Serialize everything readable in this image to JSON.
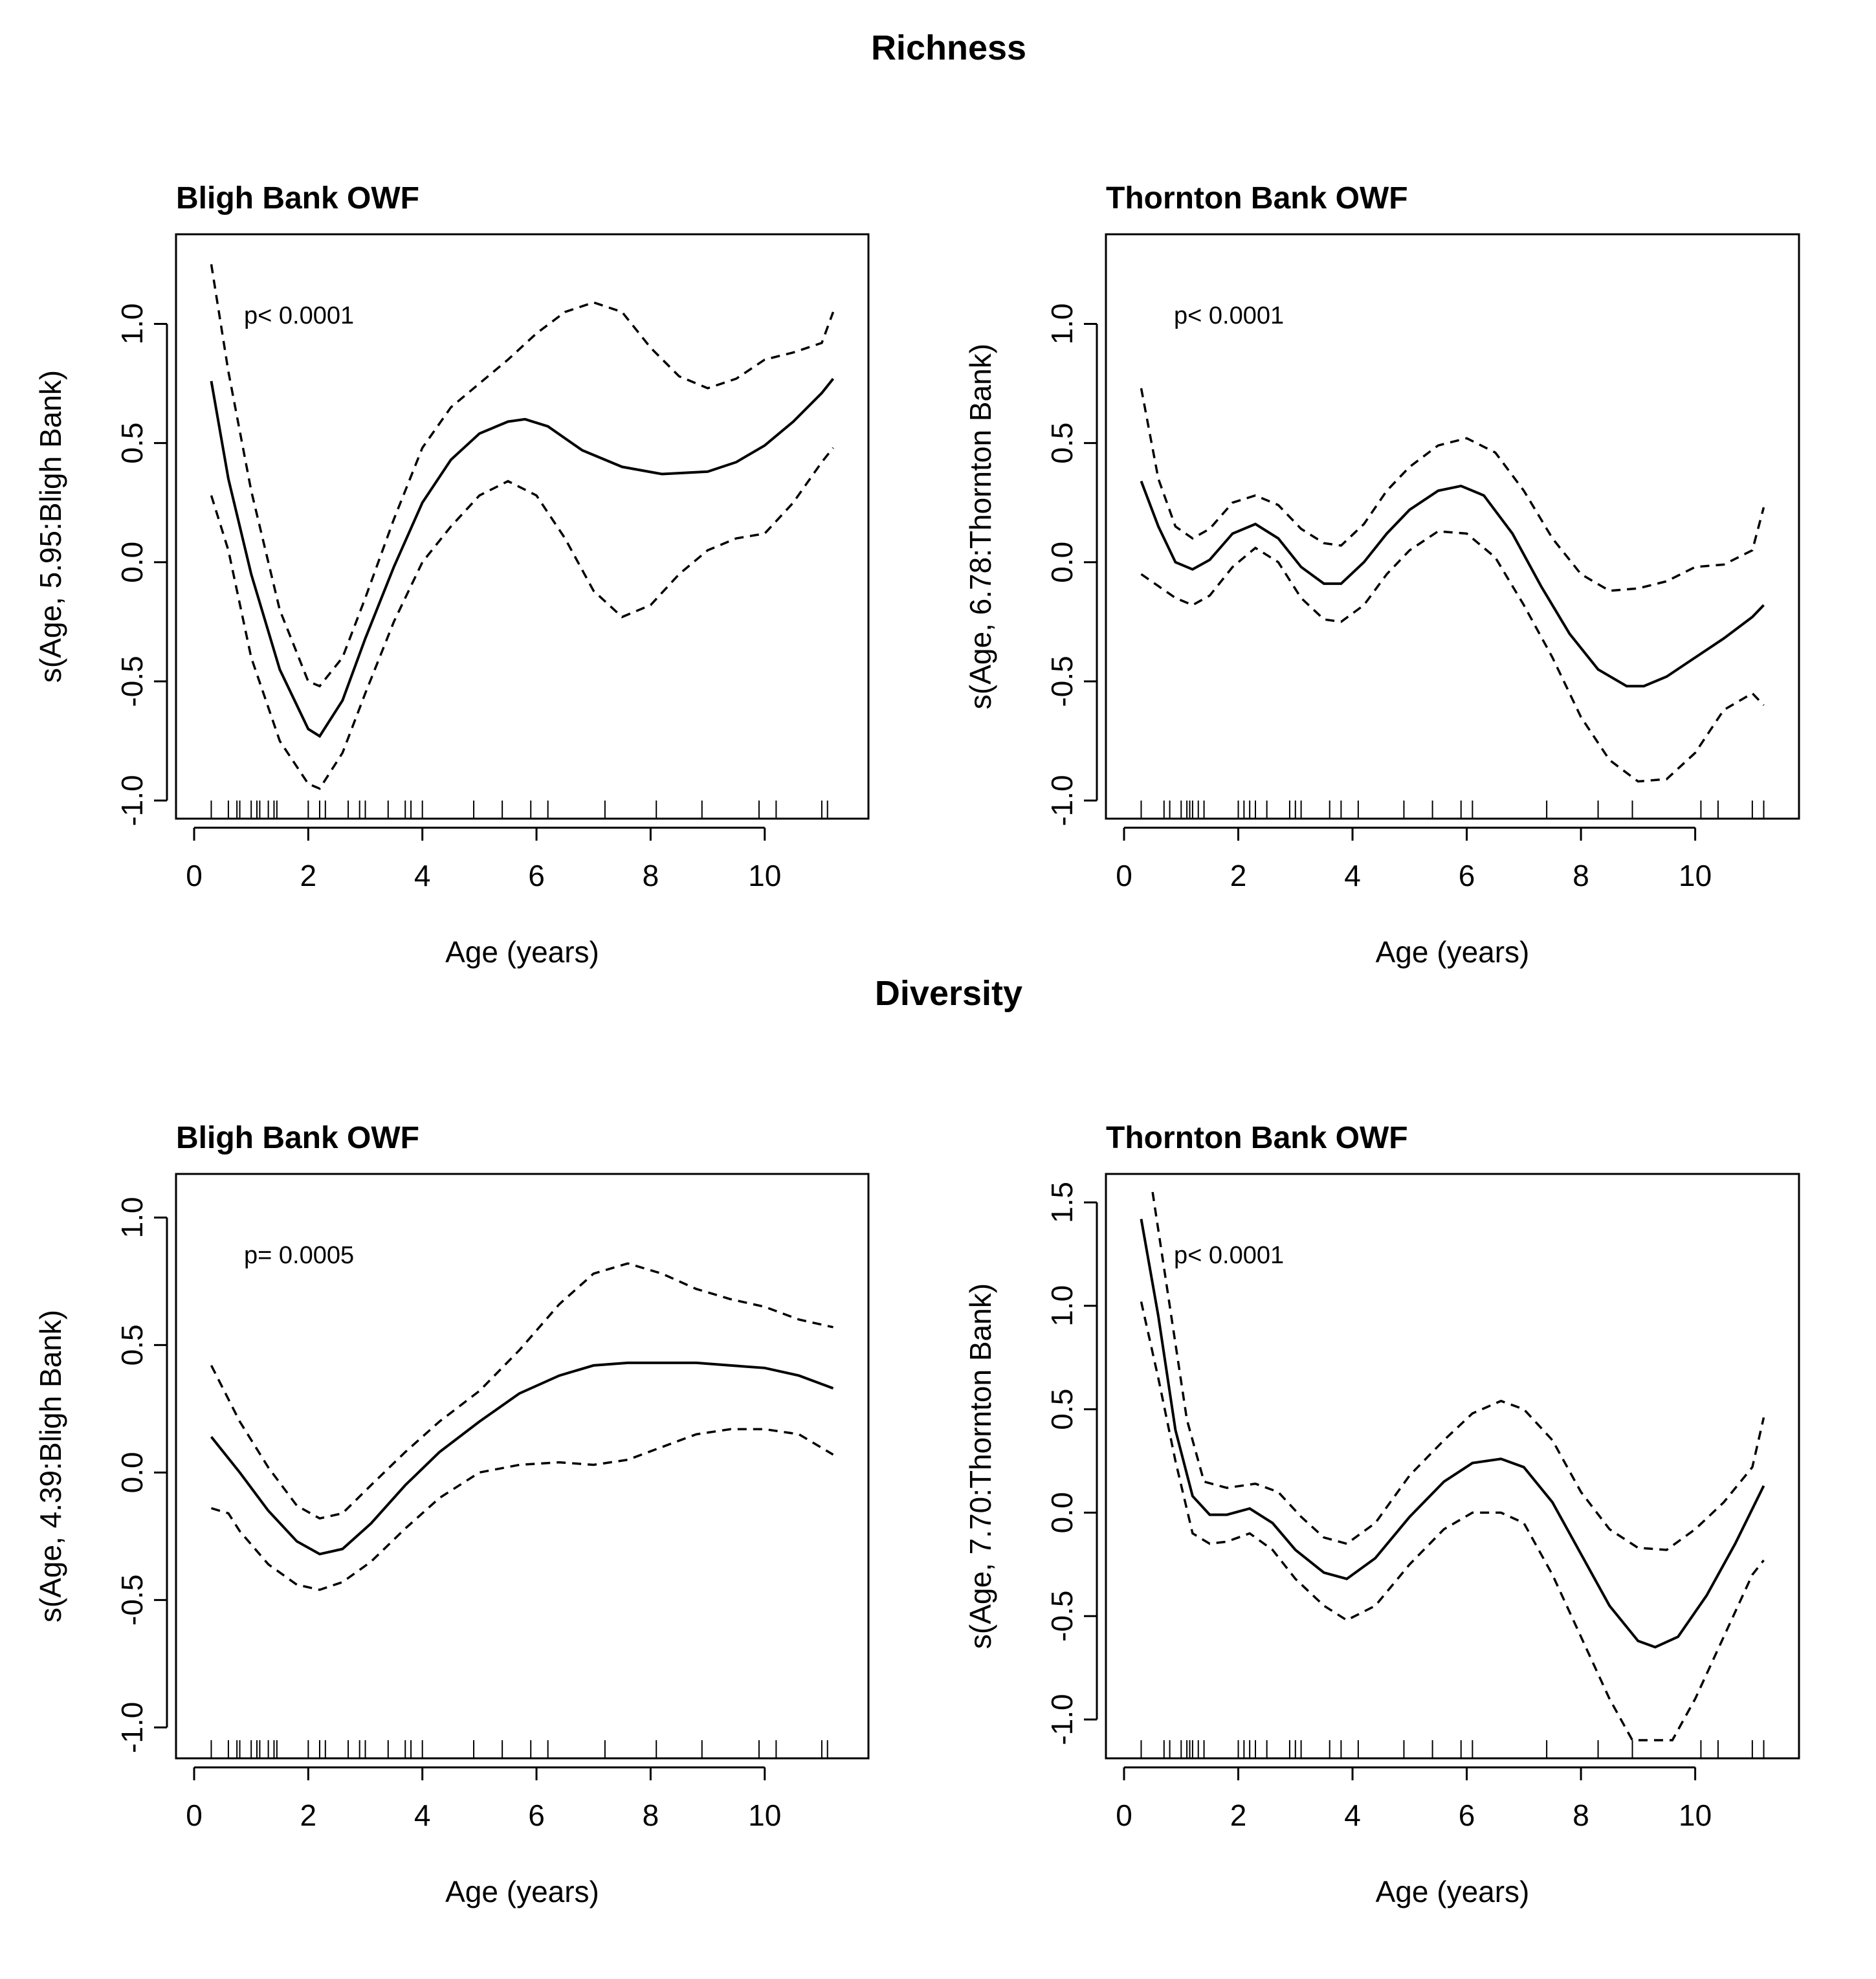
{
  "sections": [
    {
      "title": "Richness"
    },
    {
      "title": "Diversity"
    }
  ],
  "chart_data": [
    {
      "type": "line",
      "section": "Richness",
      "title": "Bligh Bank OWF",
      "xlabel": "Age (years)",
      "ylabel": "s(Age, 5.95:Bligh Bank)",
      "annotation": "p< 0.0001",
      "xlim": [
        0,
        11.5
      ],
      "ylim": [
        -1.0,
        1.3
      ],
      "xticks": [
        0,
        2,
        4,
        6,
        8,
        10
      ],
      "yticks": [
        -1.0,
        -0.5,
        0.0,
        0.5,
        1.0
      ],
      "rug": [
        0.3,
        0.6,
        0.75,
        0.8,
        1.0,
        1.1,
        1.15,
        1.3,
        1.4,
        1.45,
        2.0,
        2.2,
        2.3,
        2.7,
        2.9,
        3.0,
        3.4,
        3.7,
        3.8,
        4.0,
        4.9,
        5.4,
        5.9,
        6.2,
        7.2,
        8.1,
        8.9,
        9.9,
        10.2,
        11.0,
        11.1
      ],
      "series": [
        {
          "style": "solid",
          "x": [
            0.3,
            0.6,
            1.0,
            1.5,
            2.0,
            2.2,
            2.6,
            3.0,
            3.5,
            4.0,
            4.5,
            5.0,
            5.5,
            5.8,
            6.2,
            6.8,
            7.5,
            8.2,
            9.0,
            9.5,
            10.0,
            10.5,
            11.0,
            11.2
          ],
          "y": [
            0.76,
            0.35,
            -0.05,
            -0.45,
            -0.7,
            -0.73,
            -0.58,
            -0.32,
            -0.02,
            0.25,
            0.43,
            0.54,
            0.59,
            0.6,
            0.57,
            0.47,
            0.4,
            0.37,
            0.38,
            0.42,
            0.49,
            0.59,
            0.71,
            0.77
          ]
        },
        {
          "style": "dashed",
          "x": [
            0.3,
            0.6,
            1.0,
            1.5,
            2.0,
            2.2,
            2.6,
            3.0,
            3.5,
            4.0,
            4.5,
            5.0,
            5.5,
            6.0,
            6.5,
            7.0,
            7.5,
            8.0,
            8.5,
            9.0,
            9.5,
            10.0,
            10.5,
            11.0,
            11.2
          ],
          "y": [
            1.25,
            0.8,
            0.3,
            -0.2,
            -0.5,
            -0.52,
            -0.4,
            -0.15,
            0.18,
            0.48,
            0.65,
            0.75,
            0.85,
            0.96,
            1.05,
            1.09,
            1.05,
            0.9,
            0.78,
            0.73,
            0.77,
            0.85,
            0.88,
            0.92,
            1.05
          ]
        },
        {
          "style": "dashed",
          "x": [
            0.3,
            0.6,
            1.0,
            1.5,
            2.0,
            2.2,
            2.6,
            3.0,
            3.5,
            4.0,
            4.5,
            5.0,
            5.5,
            6.0,
            6.5,
            7.0,
            7.5,
            8.0,
            8.5,
            9.0,
            9.5,
            10.0,
            10.5,
            11.0,
            11.2
          ],
          "y": [
            0.28,
            0.05,
            -0.4,
            -0.75,
            -0.93,
            -0.95,
            -0.8,
            -0.55,
            -0.25,
            0.0,
            0.15,
            0.28,
            0.34,
            0.28,
            0.1,
            -0.12,
            -0.23,
            -0.18,
            -0.05,
            0.05,
            0.1,
            0.12,
            0.25,
            0.42,
            0.48
          ]
        }
      ]
    },
    {
      "type": "line",
      "section": "Richness",
      "title": "Thornton Bank OWF",
      "xlabel": "Age (years)",
      "ylabel": "s(Age, 6.78:Thornton Bank)",
      "annotation": "p< 0.0001",
      "xlim": [
        0,
        11.5
      ],
      "ylim": [
        -1.0,
        1.3
      ],
      "xticks": [
        0,
        2,
        4,
        6,
        8,
        10
      ],
      "yticks": [
        -1.0,
        -0.5,
        0.0,
        0.5,
        1.0
      ],
      "rug": [
        0.3,
        0.7,
        0.8,
        1.0,
        1.1,
        1.15,
        1.2,
        1.3,
        1.4,
        2.0,
        2.1,
        2.2,
        2.3,
        2.5,
        2.9,
        3.0,
        3.1,
        3.6,
        3.8,
        4.1,
        4.9,
        5.4,
        5.9,
        6.1,
        7.4,
        8.3,
        8.9,
        10.1,
        10.4,
        11.0,
        11.2
      ],
      "series": [
        {
          "style": "solid",
          "x": [
            0.3,
            0.6,
            0.9,
            1.2,
            1.5,
            1.9,
            2.3,
            2.7,
            3.1,
            3.5,
            3.8,
            4.2,
            4.6,
            5.0,
            5.5,
            5.9,
            6.3,
            6.8,
            7.3,
            7.8,
            8.3,
            8.8,
            9.1,
            9.5,
            10.0,
            10.5,
            11.0,
            11.2
          ],
          "y": [
            0.34,
            0.15,
            0.0,
            -0.03,
            0.01,
            0.12,
            0.16,
            0.1,
            -0.02,
            -0.09,
            -0.09,
            0.0,
            0.12,
            0.22,
            0.3,
            0.32,
            0.28,
            0.12,
            -0.1,
            -0.3,
            -0.45,
            -0.52,
            -0.52,
            -0.48,
            -0.4,
            -0.32,
            -0.23,
            -0.18
          ]
        },
        {
          "style": "dashed",
          "x": [
            0.3,
            0.6,
            0.9,
            1.2,
            1.5,
            1.9,
            2.3,
            2.7,
            3.1,
            3.5,
            3.8,
            4.2,
            4.6,
            5.0,
            5.5,
            6.0,
            6.5,
            7.0,
            7.5,
            8.0,
            8.5,
            9.0,
            9.5,
            10.0,
            10.5,
            11.0,
            11.2
          ],
          "y": [
            0.73,
            0.35,
            0.15,
            0.1,
            0.14,
            0.25,
            0.28,
            0.24,
            0.14,
            0.08,
            0.07,
            0.16,
            0.3,
            0.4,
            0.49,
            0.52,
            0.46,
            0.3,
            0.1,
            -0.05,
            -0.12,
            -0.11,
            -0.08,
            -0.02,
            -0.01,
            0.05,
            0.23
          ]
        },
        {
          "style": "dashed",
          "x": [
            0.3,
            0.6,
            0.9,
            1.2,
            1.5,
            1.9,
            2.3,
            2.7,
            3.1,
            3.5,
            3.8,
            4.2,
            4.6,
            5.0,
            5.5,
            6.0,
            6.5,
            7.0,
            7.5,
            8.0,
            8.5,
            9.0,
            9.5,
            10.0,
            10.5,
            11.0,
            11.2
          ],
          "y": [
            -0.05,
            -0.1,
            -0.15,
            -0.18,
            -0.14,
            -0.02,
            0.06,
            0.0,
            -0.15,
            -0.24,
            -0.25,
            -0.18,
            -0.05,
            0.05,
            0.13,
            0.12,
            0.02,
            -0.18,
            -0.4,
            -0.65,
            -0.83,
            -0.92,
            -0.91,
            -0.8,
            -0.62,
            -0.55,
            -0.6
          ]
        }
      ]
    },
    {
      "type": "line",
      "section": "Diversity",
      "title": "Bligh Bank OWF",
      "xlabel": "Age (years)",
      "ylabel": "s(Age, 4.39:Bligh Bank)",
      "annotation": "p= 0.0005",
      "xlim": [
        0,
        11.5
      ],
      "ylim": [
        -1.05,
        1.1
      ],
      "xticks": [
        0,
        2,
        4,
        6,
        8,
        10
      ],
      "yticks": [
        -1.0,
        -0.5,
        0.0,
        0.5,
        1.0
      ],
      "rug": [
        0.3,
        0.6,
        0.75,
        0.8,
        1.0,
        1.1,
        1.15,
        1.3,
        1.4,
        1.45,
        2.0,
        2.2,
        2.3,
        2.7,
        2.9,
        3.0,
        3.4,
        3.7,
        3.8,
        4.0,
        4.9,
        5.4,
        5.9,
        6.2,
        7.2,
        8.1,
        8.9,
        9.9,
        10.2,
        11.0,
        11.1
      ],
      "series": [
        {
          "style": "solid",
          "x": [
            0.3,
            0.8,
            1.3,
            1.8,
            2.2,
            2.6,
            3.1,
            3.7,
            4.3,
            5.0,
            5.7,
            6.4,
            7.0,
            7.6,
            8.2,
            8.8,
            9.4,
            10.0,
            10.6,
            11.2
          ],
          "y": [
            0.14,
            0.0,
            -0.15,
            -0.27,
            -0.32,
            -0.3,
            -0.2,
            -0.05,
            0.08,
            0.2,
            0.31,
            0.38,
            0.42,
            0.43,
            0.43,
            0.43,
            0.42,
            0.41,
            0.38,
            0.33
          ]
        },
        {
          "style": "dashed",
          "x": [
            0.3,
            0.8,
            1.3,
            1.8,
            2.2,
            2.6,
            3.1,
            3.7,
            4.3,
            5.0,
            5.7,
            6.4,
            7.0,
            7.6,
            8.2,
            8.8,
            9.4,
            10.0,
            10.6,
            11.2
          ],
          "y": [
            0.42,
            0.2,
            0.02,
            -0.13,
            -0.18,
            -0.16,
            -0.05,
            0.08,
            0.2,
            0.32,
            0.48,
            0.66,
            0.78,
            0.82,
            0.78,
            0.72,
            0.68,
            0.65,
            0.6,
            0.57
          ]
        },
        {
          "style": "dashed",
          "x": [
            0.3,
            0.6,
            0.8,
            1.3,
            1.8,
            2.2,
            2.6,
            3.1,
            3.7,
            4.3,
            5.0,
            5.7,
            6.4,
            7.0,
            7.6,
            8.2,
            8.8,
            9.4,
            10.0,
            10.6,
            11.2
          ],
          "y": [
            -0.14,
            -0.16,
            -0.23,
            -0.36,
            -0.44,
            -0.46,
            -0.43,
            -0.35,
            -0.22,
            -0.1,
            0.0,
            0.03,
            0.04,
            0.03,
            0.05,
            0.1,
            0.15,
            0.17,
            0.17,
            0.15,
            0.07
          ]
        }
      ]
    },
    {
      "type": "line",
      "section": "Diversity",
      "title": "Thornton Bank OWF",
      "xlabel": "Age (years)",
      "ylabel": "s(Age, 7.70:Thornton Bank)",
      "annotation": "p< 0.0001",
      "xlim": [
        0,
        11.5
      ],
      "ylim": [
        -1.1,
        1.55
      ],
      "xticks": [
        0,
        2,
        4,
        6,
        8,
        10
      ],
      "yticks": [
        -1.0,
        -0.5,
        0.0,
        0.5,
        1.0,
        1.5
      ],
      "rug": [
        0.3,
        0.7,
        0.8,
        1.0,
        1.1,
        1.15,
        1.2,
        1.3,
        1.4,
        2.0,
        2.1,
        2.2,
        2.3,
        2.5,
        2.9,
        3.0,
        3.1,
        3.6,
        3.8,
        4.1,
        4.9,
        5.4,
        5.9,
        6.1,
        7.4,
        8.3,
        8.9,
        10.1,
        10.4,
        11.0,
        11.2
      ],
      "series": [
        {
          "style": "solid",
          "x": [
            0.3,
            0.6,
            0.9,
            1.2,
            1.5,
            1.8,
            2.2,
            2.6,
            3.0,
            3.5,
            3.9,
            4.4,
            5.0,
            5.6,
            6.1,
            6.6,
            7.0,
            7.5,
            8.0,
            8.5,
            9.0,
            9.3,
            9.7,
            10.2,
            10.7,
            11.2
          ],
          "y": [
            1.42,
            0.95,
            0.4,
            0.08,
            -0.01,
            -0.01,
            0.02,
            -0.05,
            -0.18,
            -0.29,
            -0.32,
            -0.22,
            -0.02,
            0.15,
            0.24,
            0.26,
            0.22,
            0.05,
            -0.2,
            -0.45,
            -0.62,
            -0.65,
            -0.6,
            -0.4,
            -0.15,
            0.13
          ]
        },
        {
          "style": "dashed",
          "x": [
            0.5,
            0.8,
            1.1,
            1.4,
            1.8,
            2.3,
            2.7,
            3.1,
            3.5,
            3.9,
            4.4,
            5.0,
            5.6,
            6.1,
            6.6,
            7.0,
            7.5,
            8.0,
            8.5,
            9.0,
            9.5,
            10.0,
            10.5,
            11.0,
            11.2
          ],
          "y": [
            1.55,
            1.0,
            0.45,
            0.15,
            0.12,
            0.14,
            0.1,
            -0.02,
            -0.12,
            -0.15,
            -0.05,
            0.18,
            0.35,
            0.48,
            0.54,
            0.5,
            0.35,
            0.1,
            -0.08,
            -0.17,
            -0.18,
            -0.08,
            0.05,
            0.22,
            0.46
          ]
        },
        {
          "style": "dashed",
          "x": [
            0.3,
            0.6,
            0.9,
            1.2,
            1.5,
            1.8,
            2.2,
            2.6,
            3.0,
            3.5,
            3.9,
            4.4,
            5.0,
            5.6,
            6.1,
            6.6,
            7.0,
            7.5,
            8.0,
            8.5,
            8.9,
            9.2,
            9.6,
            10.0,
            10.5,
            11.0,
            11.2
          ],
          "y": [
            1.02,
            0.65,
            0.25,
            -0.1,
            -0.15,
            -0.14,
            -0.1,
            -0.18,
            -0.32,
            -0.45,
            -0.52,
            -0.45,
            -0.25,
            -0.08,
            0.0,
            0.0,
            -0.05,
            -0.3,
            -0.6,
            -0.9,
            -1.1,
            -1.1,
            -1.1,
            -0.9,
            -0.6,
            -0.3,
            -0.23
          ]
        }
      ]
    }
  ]
}
